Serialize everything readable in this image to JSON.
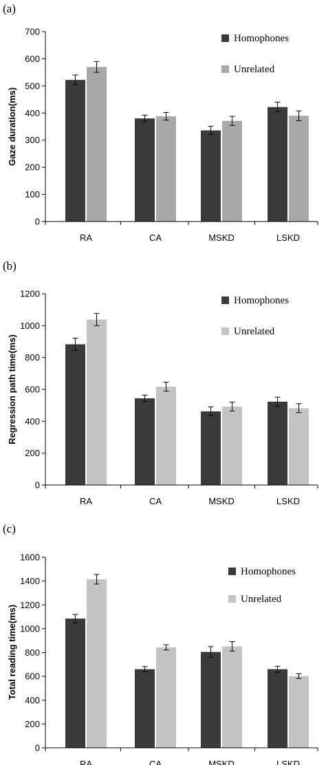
{
  "chart_data": [
    {
      "type": "bar",
      "panel_label": "(a)",
      "ylabel": "Gaze duration(ms)",
      "xlabel": "",
      "categories": [
        "RA",
        "CA",
        "MSKD",
        "LSKD"
      ],
      "ylim": [
        0,
        700
      ],
      "yticks": [
        0,
        100,
        200,
        300,
        400,
        500,
        600,
        700
      ],
      "legend_position": "top-right",
      "grid": false,
      "series": [
        {
          "name": "Homophones",
          "color": "#3a3a3a",
          "values": [
            522,
            380,
            336,
            422
          ],
          "errors": [
            18,
            12,
            15,
            18
          ]
        },
        {
          "name": "Unrelated",
          "color": "#a9a9a9",
          "values": [
            570,
            388,
            371,
            390
          ],
          "errors": [
            20,
            14,
            17,
            18
          ]
        }
      ]
    },
    {
      "type": "bar",
      "panel_label": "(b)",
      "ylabel": "Regression path time(ms)",
      "xlabel": "",
      "categories": [
        "RA",
        "CA",
        "MSKD",
        "LSKD"
      ],
      "ylim": [
        0,
        1200
      ],
      "yticks": [
        0,
        200,
        400,
        600,
        800,
        1000,
        1200
      ],
      "legend_position": "top-right",
      "grid": false,
      "series": [
        {
          "name": "Homophones",
          "color": "#3a3a3a",
          "values": [
            883,
            544,
            462,
            523
          ],
          "errors": [
            38,
            20,
            28,
            28
          ]
        },
        {
          "name": "Unrelated",
          "color": "#c4c4c4",
          "values": [
            1038,
            617,
            492,
            482
          ],
          "errors": [
            38,
            28,
            28,
            28
          ]
        }
      ]
    },
    {
      "type": "bar",
      "panel_label": "(c)",
      "ylabel": "Total reading time(ms)",
      "xlabel": "",
      "categories": [
        "RA",
        "CA",
        "MSKD",
        "LSKD"
      ],
      "ylim": [
        0,
        1600
      ],
      "yticks": [
        0,
        200,
        400,
        600,
        800,
        1000,
        1200,
        1400,
        1600
      ],
      "legend_position": "top-right",
      "grid": false,
      "series": [
        {
          "name": "Homophones",
          "color": "#3a3a3a",
          "values": [
            1085,
            660,
            805,
            660
          ],
          "errors": [
            35,
            22,
            45,
            25
          ]
        },
        {
          "name": "Unrelated",
          "color": "#c4c4c4",
          "values": [
            1415,
            843,
            852,
            602
          ],
          "errors": [
            40,
            22,
            40,
            20
          ]
        }
      ]
    }
  ]
}
